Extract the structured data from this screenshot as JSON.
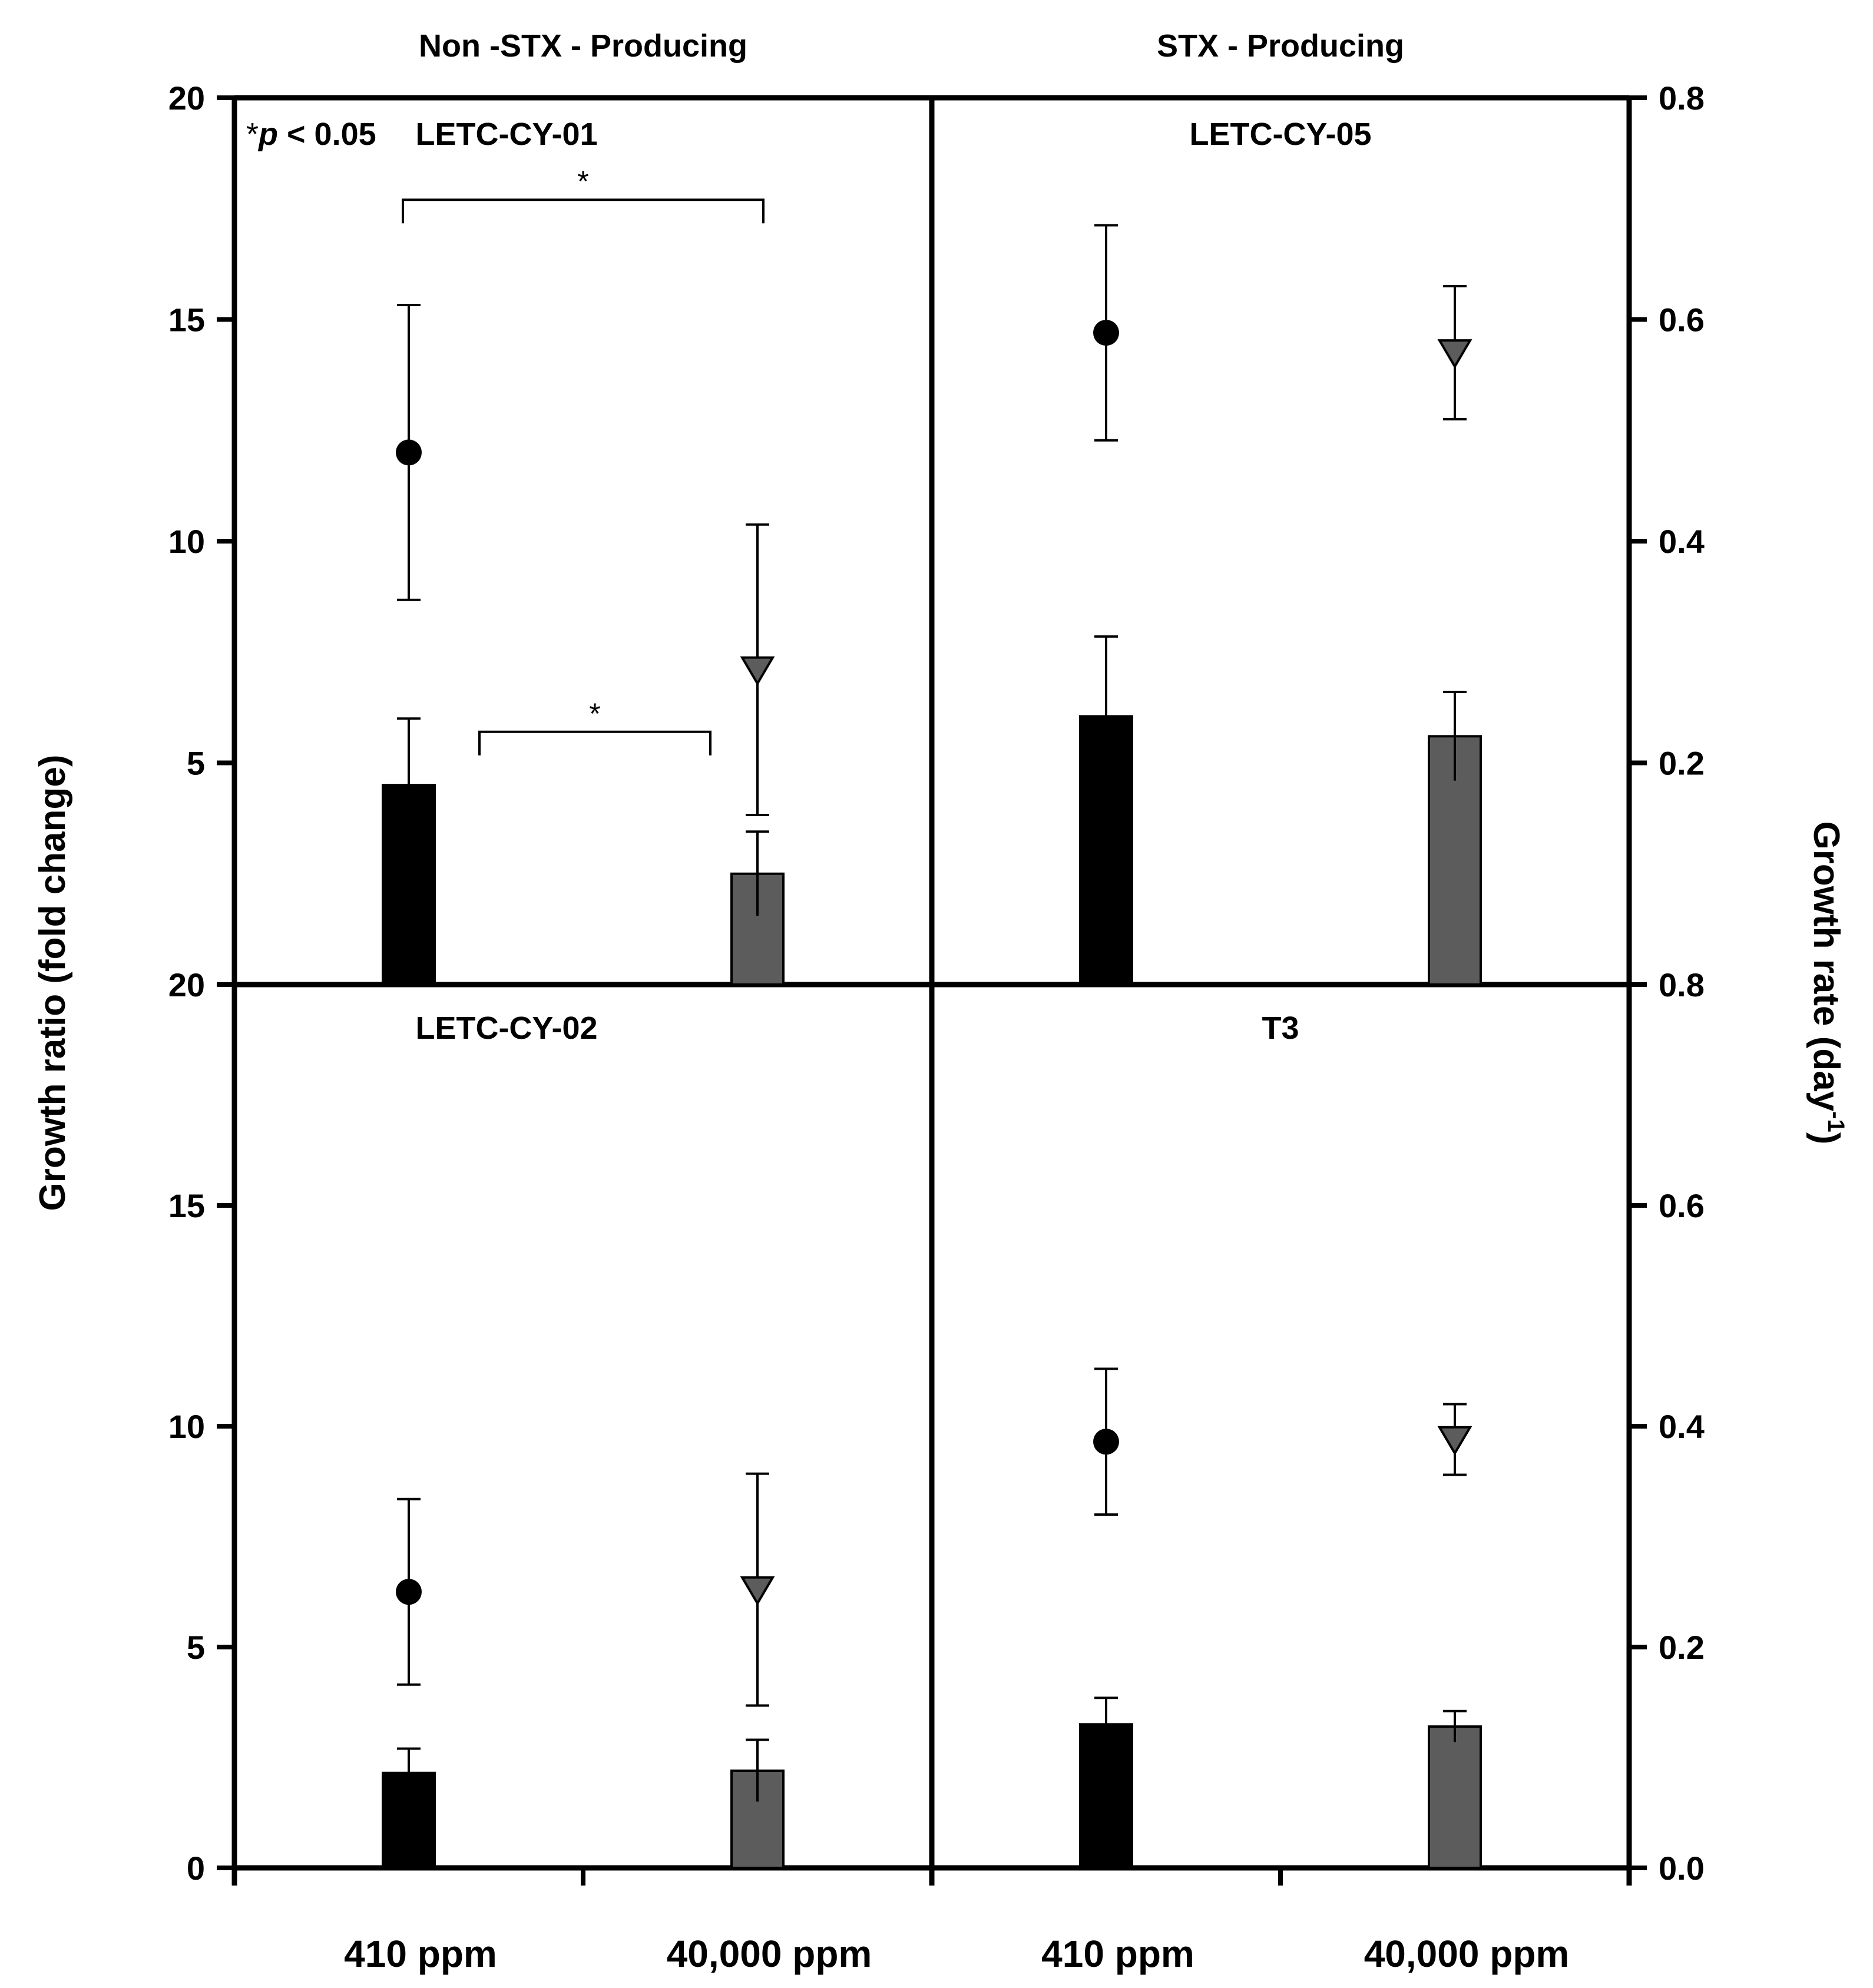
{
  "chart_data": {
    "type": "bar",
    "description_type": "bar + point with error bars, dual y-axis, 2x2 panels",
    "group_headers": [
      "Non -STX - Producing",
      "STX - Producing"
    ],
    "y_left_label": "Growth ratio (fold change)",
    "y_right_label_main": "Growth rate (day",
    "y_right_label_sup": "-1",
    "y_right_label_end": ")",
    "ylim_left": [
      0,
      20
    ],
    "ylim_right": [
      0,
      0.8
    ],
    "left_ticks": [
      "0",
      "5",
      "10",
      "15",
      "20"
    ],
    "right_ticks": [
      "0.0",
      "0.2",
      "0.4",
      "0.6",
      "0.8"
    ],
    "categories": [
      "410 ppm",
      "40,000 ppm"
    ],
    "series": [
      {
        "name": "Growth ratio",
        "kind": "bar",
        "axis": "left"
      },
      {
        "name": "Growth rate",
        "kind": "point",
        "axis": "right"
      }
    ],
    "significance_note_star": "*",
    "significance_note_p": "p",
    "significance_note_rest": " < 0.05",
    "colors": {
      "410": "#000000",
      "40000": "#5c5c5c",
      "axis": "#000000"
    },
    "panels": [
      {
        "id": "LETC-CY-01",
        "label": "LETC-CY-01",
        "bars": [
          {
            "value": 4.5,
            "err": 1.5
          },
          {
            "value": 2.5,
            "err": 0.95
          }
        ],
        "points": [
          {
            "value": 0.48,
            "err": 0.133
          },
          {
            "value": 0.284,
            "err": 0.131
          }
        ],
        "significance": [
          {
            "type": "points",
            "y": 17.7,
            "label": "*"
          },
          {
            "type": "bars",
            "y": 5.7,
            "label": "*"
          }
        ]
      },
      {
        "id": "LETC-CY-05",
        "label": "LETC-CY-05",
        "bars": [
          {
            "value": 6.05,
            "err": 1.8
          },
          {
            "value": 5.6,
            "err": 1.0
          }
        ],
        "points": [
          {
            "value": 0.588,
            "err": 0.097
          },
          {
            "value": 0.57,
            "err": 0.06
          }
        ],
        "significance": []
      },
      {
        "id": "LETC-CY-02",
        "label": "LETC-CY-02",
        "bars": [
          {
            "value": 2.15,
            "err": 0.55
          },
          {
            "value": 2.2,
            "err": 0.7
          }
        ],
        "points": [
          {
            "value": 0.25,
            "err": 0.084
          },
          {
            "value": 0.252,
            "err": 0.105
          }
        ],
        "significance": []
      },
      {
        "id": "T3",
        "label": "T3",
        "bars": [
          {
            "value": 3.25,
            "err": 0.6
          },
          {
            "value": 3.2,
            "err": 0.35
          }
        ],
        "points": [
          {
            "value": 0.386,
            "err": 0.066
          },
          {
            "value": 0.388,
            "err": 0.032
          }
        ],
        "significance": []
      }
    ]
  }
}
